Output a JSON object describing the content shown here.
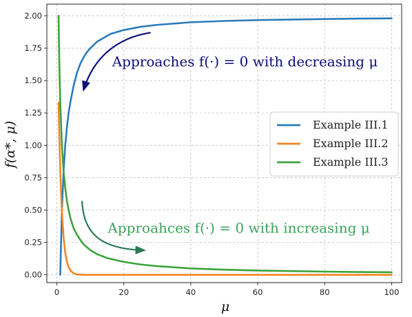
{
  "chart_data": {
    "type": "line",
    "title": "",
    "xlabel": "μ",
    "ylabel": "f(α*, μ)",
    "xlim": [
      -3,
      103
    ],
    "ylim": [
      -0.06,
      2.09
    ],
    "xticks": [
      0,
      20,
      40,
      60,
      80,
      100
    ],
    "xtick_labels": [
      "0",
      "20",
      "40",
      "60",
      "80",
      "100"
    ],
    "yticks": [
      0.0,
      0.25,
      0.5,
      0.75,
      1.0,
      1.25,
      1.5,
      1.75,
      2.0
    ],
    "ytick_labels": [
      "0.00",
      "0.25",
      "0.50",
      "0.75",
      "1.00",
      "1.25",
      "1.50",
      "1.75",
      "2.00"
    ],
    "grid": true,
    "legend_position": "center-right",
    "series": [
      {
        "name": "Example III.1",
        "color": "#2b7bba",
        "x": [
          1,
          1.5,
          2,
          2.5,
          3,
          3.5,
          4,
          5,
          6,
          7,
          8,
          9,
          10,
          12,
          14,
          16,
          18,
          20,
          25,
          30,
          35,
          40,
          50,
          60,
          70,
          80,
          90,
          100
        ],
        "y": [
          0.0,
          0.5,
          0.8,
          1.0,
          1.14,
          1.25,
          1.33,
          1.46,
          1.56,
          1.63,
          1.68,
          1.72,
          1.75,
          1.8,
          1.83,
          1.86,
          1.875,
          1.89,
          1.915,
          1.93,
          1.94,
          1.95,
          1.96,
          1.967,
          1.971,
          1.975,
          1.978,
          1.98
        ]
      },
      {
        "name": "Example III.2",
        "color": "#f28522",
        "x": [
          0.5,
          0.75,
          1,
          1.25,
          1.5,
          2,
          2.5,
          3,
          3.5,
          4,
          5,
          6,
          8,
          10,
          20,
          40,
          60,
          80,
          100
        ],
        "y": [
          1.33,
          1.05,
          0.82,
          0.63,
          0.49,
          0.29,
          0.17,
          0.1,
          0.06,
          0.035,
          0.012,
          0.004,
          0.0005,
          0.0,
          0.0,
          0.0,
          0.0,
          0.0,
          0.0
        ]
      },
      {
        "name": "Example III.3",
        "color": "#3aa33a",
        "x": [
          0.5,
          0.75,
          1,
          1.5,
          2,
          2.5,
          3,
          4,
          5,
          6,
          7,
          8,
          10,
          12,
          15,
          20,
          25,
          30,
          40,
          50,
          60,
          70,
          80,
          90,
          100
        ],
        "y": [
          2.0,
          1.6,
          1.33,
          1.0,
          0.8,
          0.67,
          0.57,
          0.44,
          0.36,
          0.31,
          0.27,
          0.235,
          0.19,
          0.16,
          0.13,
          0.1,
          0.08,
          0.067,
          0.05,
          0.04,
          0.033,
          0.029,
          0.025,
          0.022,
          0.02
        ]
      }
    ],
    "annotations": [
      {
        "text": "Approaches f(·) = 0 with decreasing μ",
        "color": "#0c0c7a",
        "x": 16.5,
        "y": 1.61,
        "arrow": {
          "color": "#0c0c7a",
          "path_x": [
            28,
            18,
            11,
            8
          ],
          "path_y": [
            1.87,
            1.83,
            1.68,
            1.43
          ]
        }
      },
      {
        "text": "Approahces f(·) = 0 with increasing μ",
        "color": "#3aa35a",
        "x": 15.2,
        "y": 0.325,
        "arrow": {
          "color": "#2a7a55",
          "path_x": [
            7.5,
            8,
            12,
            26
          ],
          "path_y": [
            0.57,
            0.34,
            0.2,
            0.19
          ]
        }
      }
    ]
  }
}
